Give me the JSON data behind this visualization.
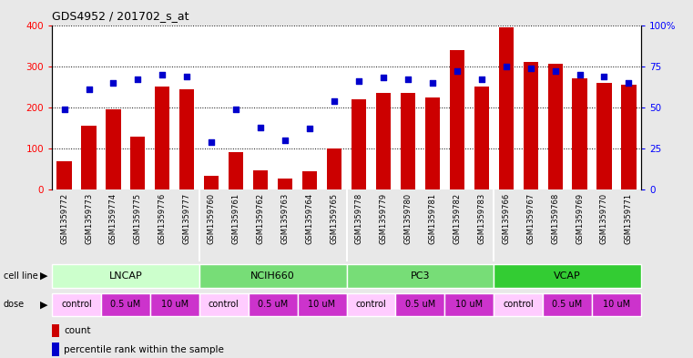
{
  "title": "GDS4952 / 201702_s_at",
  "samples": [
    "GSM1359772",
    "GSM1359773",
    "GSM1359774",
    "GSM1359775",
    "GSM1359776",
    "GSM1359777",
    "GSM1359760",
    "GSM1359761",
    "GSM1359762",
    "GSM1359763",
    "GSM1359764",
    "GSM1359765",
    "GSM1359778",
    "GSM1359779",
    "GSM1359780",
    "GSM1359781",
    "GSM1359782",
    "GSM1359783",
    "GSM1359766",
    "GSM1359767",
    "GSM1359768",
    "GSM1359769",
    "GSM1359770",
    "GSM1359771"
  ],
  "counts": [
    70,
    155,
    195,
    130,
    250,
    245,
    33,
    92,
    47,
    28,
    45,
    100,
    220,
    235,
    235,
    225,
    340,
    250,
    395,
    310,
    305,
    270,
    260,
    255
  ],
  "percentiles": [
    49,
    61,
    65,
    67,
    70,
    69,
    29,
    49,
    38,
    30,
    37,
    54,
    66,
    68,
    67,
    65,
    72,
    67,
    75,
    74,
    72,
    70,
    69,
    65
  ],
  "cell_line_info": [
    {
      "name": "LNCAP",
      "start": 0,
      "end": 6,
      "color": "#ccffcc"
    },
    {
      "name": "NCIH660",
      "start": 6,
      "end": 12,
      "color": "#88ee88"
    },
    {
      "name": "PC3",
      "start": 12,
      "end": 18,
      "color": "#88ee88"
    },
    {
      "name": "VCAP",
      "start": 18,
      "end": 24,
      "color": "#44cc44"
    }
  ],
  "dose_defs": [
    {
      "label": "control",
      "start": 0,
      "end": 2,
      "color": "#ffccff"
    },
    {
      "label": "0.5 uM",
      "start": 2,
      "end": 4,
      "color": "#dd44dd"
    },
    {
      "label": "10 uM",
      "start": 4,
      "end": 6,
      "color": "#dd44dd"
    },
    {
      "label": "control",
      "start": 6,
      "end": 8,
      "color": "#ffccff"
    },
    {
      "label": "0.5 uM",
      "start": 8,
      "end": 10,
      "color": "#dd44dd"
    },
    {
      "label": "10 uM",
      "start": 10,
      "end": 12,
      "color": "#dd44dd"
    },
    {
      "label": "control",
      "start": 12,
      "end": 14,
      "color": "#ffccff"
    },
    {
      "label": "0.5 uM",
      "start": 14,
      "end": 16,
      "color": "#dd44dd"
    },
    {
      "label": "10 uM",
      "start": 16,
      "end": 18,
      "color": "#dd44dd"
    },
    {
      "label": "control",
      "start": 18,
      "end": 20,
      "color": "#ffccff"
    },
    {
      "label": "0.5 uM",
      "start": 20,
      "end": 22,
      "color": "#dd44dd"
    },
    {
      "label": "10 uM",
      "start": 22,
      "end": 24,
      "color": "#dd44dd"
    }
  ],
  "bar_color": "#cc0000",
  "dot_color": "#0000cc",
  "ylim_left": [
    0,
    400
  ],
  "ylim_right": [
    0,
    100
  ],
  "yticks_left": [
    0,
    100,
    200,
    300,
    400
  ],
  "yticks_right": [
    0,
    25,
    50,
    75,
    100
  ],
  "ytick_labels_right": [
    "0",
    "25",
    "50",
    "75",
    "100%"
  ],
  "bg_color": "#e8e8e8",
  "plot_bg": "#ffffff",
  "xtick_bg": "#d0d0d0"
}
